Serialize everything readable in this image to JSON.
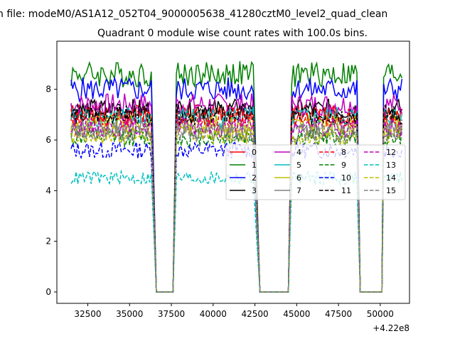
{
  "window_title": "n file: modeM0/AS1A12_052T04_9000005638_41280cztM0_level2_quad_clean",
  "chart_data": {
    "type": "line",
    "title": "Quadrant 0 module wise count rates with 100.0s bins.",
    "xlabel": "",
    "ylabel": "",
    "x_offset_label": "+4.22e8",
    "xlim": [
      30650,
      51750
    ],
    "ylim": [
      -0.45,
      9.9
    ],
    "x_ticks": [
      32500,
      35000,
      37500,
      40000,
      42500,
      45000,
      47500,
      50000
    ],
    "x_tick_labels": [
      "32500",
      "35000",
      "37500",
      "40000",
      "42500",
      "45000",
      "47500",
      "50000"
    ],
    "y_ticks": [
      0,
      2,
      4,
      6,
      8
    ],
    "y_tick_labels": [
      "0",
      "2",
      "4",
      "6",
      "8"
    ],
    "grid": false,
    "legend_position": "center-right",
    "gaps": [
      [
        36600,
        37600
      ],
      [
        42800,
        44500
      ],
      [
        48800,
        50100
      ]
    ],
    "x_segments": [
      [
        31500,
        36300
      ],
      [
        37800,
        42400
      ],
      [
        44700,
        48600
      ],
      [
        50200,
        51300
      ]
    ],
    "series": [
      {
        "name": "0",
        "color": "#ff0000",
        "dash": "solid",
        "level": 7.0
      },
      {
        "name": "1",
        "color": "#008000",
        "dash": "solid",
        "level": 8.6
      },
      {
        "name": "2",
        "color": "#0000ff",
        "dash": "solid",
        "level": 8.0
      },
      {
        "name": "3",
        "color": "#000000",
        "dash": "solid",
        "level": 7.2
      },
      {
        "name": "4",
        "color": "#bf00bf",
        "dash": "solid",
        "level": 7.4
      },
      {
        "name": "5",
        "color": "#00bfbf",
        "dash": "solid",
        "level": 6.9
      },
      {
        "name": "6",
        "color": "#bfbf00",
        "dash": "solid",
        "level": 6.6
      },
      {
        "name": "7",
        "color": "#808080",
        "dash": "solid",
        "level": 6.4
      },
      {
        "name": "8",
        "color": "#ff0000",
        "dash": "dashed",
        "level": 6.9
      },
      {
        "name": "9",
        "color": "#008000",
        "dash": "dashed",
        "level": 6.1
      },
      {
        "name": "10",
        "color": "#0000ff",
        "dash": "dashed",
        "level": 5.6
      },
      {
        "name": "11",
        "color": "#000000",
        "dash": "dashed",
        "level": 7.0
      },
      {
        "name": "12",
        "color": "#bf00bf",
        "dash": "dashed",
        "level": 6.5
      },
      {
        "name": "13",
        "color": "#00bfbf",
        "dash": "dashed",
        "level": 4.5
      },
      {
        "name": "14",
        "color": "#bfbf00",
        "dash": "dashed",
        "level": 6.2
      },
      {
        "name": "15",
        "color": "#808080",
        "dash": "dashed",
        "level": 6.3
      }
    ]
  }
}
